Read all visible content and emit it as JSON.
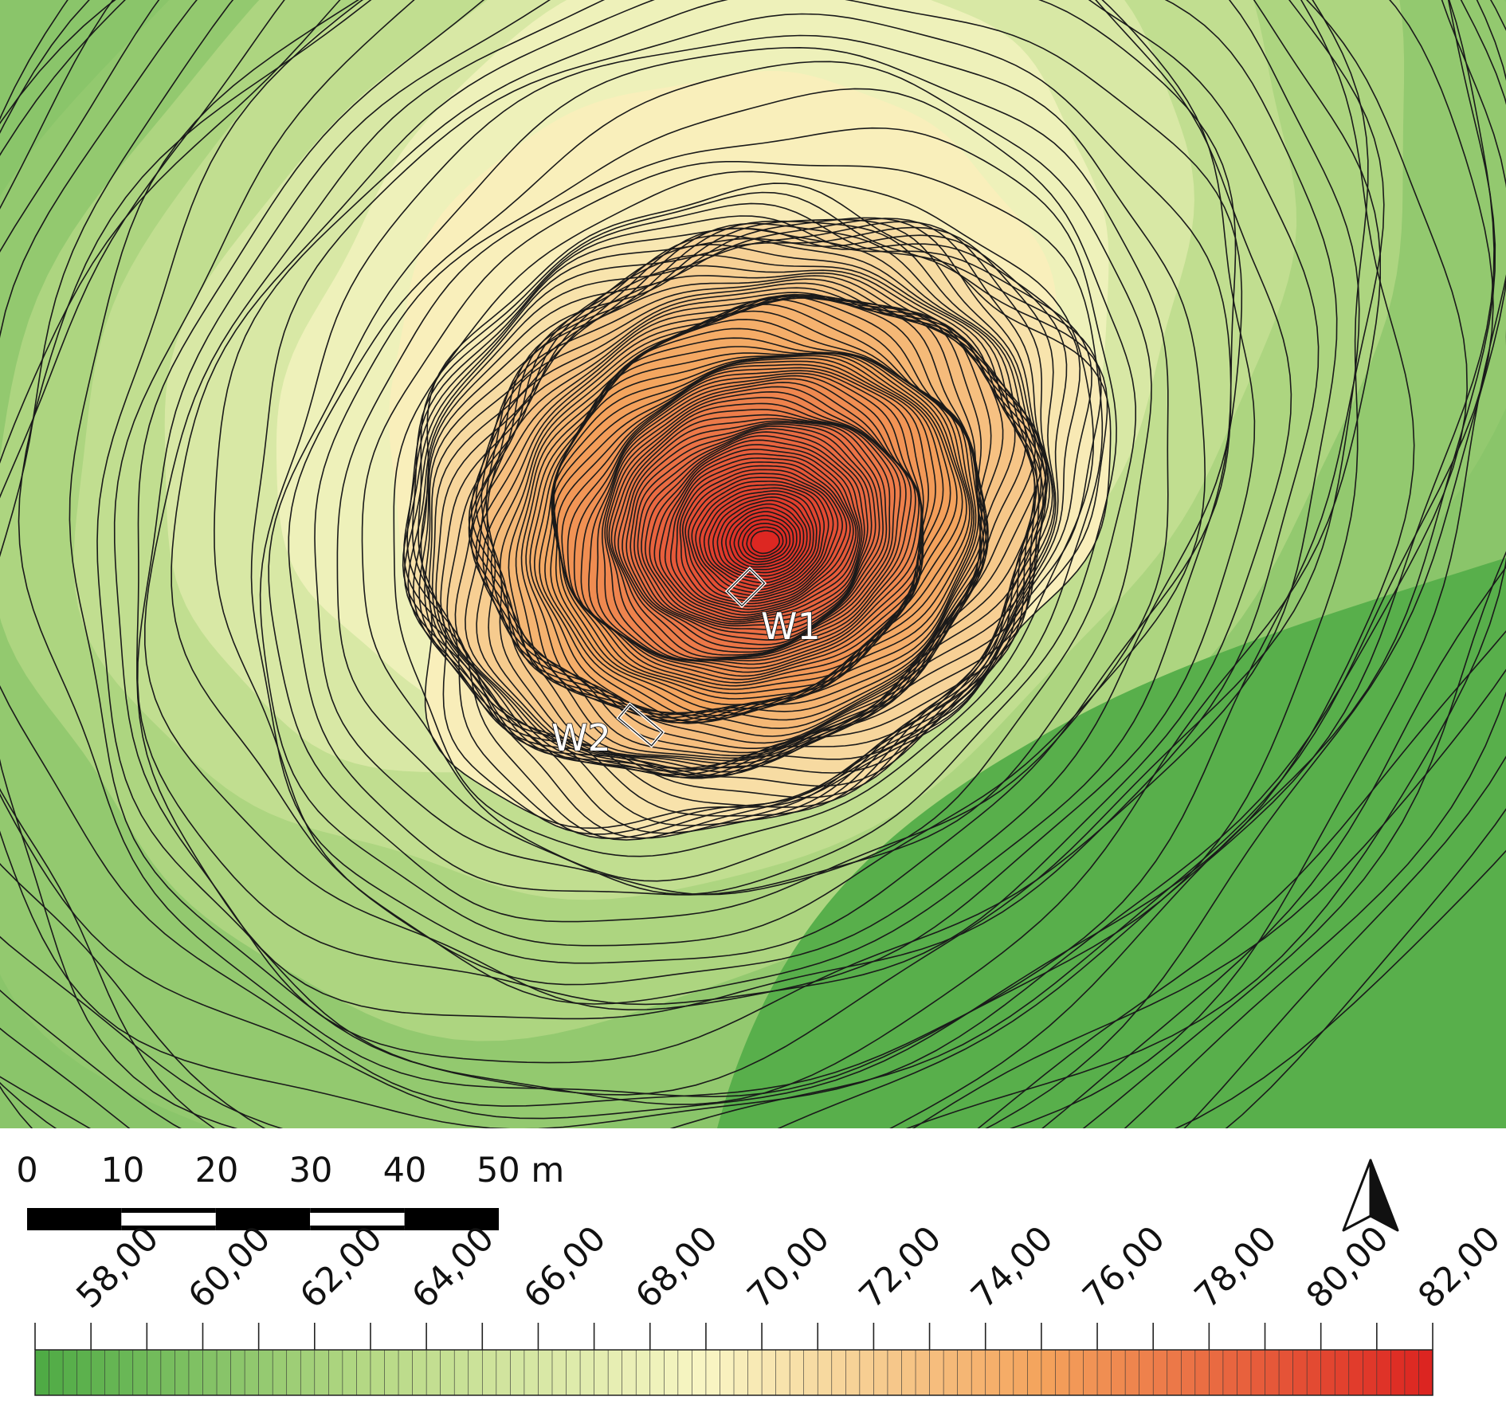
{
  "map": {
    "elevation_range": [
      57,
      82
    ],
    "contour_interval": 0.25,
    "colors": {
      "low": "#5bb44a",
      "mid_low": "#b8dc8a",
      "mid": "#f7f3c2",
      "mid_high": "#f6b06a",
      "high": "#d9261f",
      "contour": "#1a1a1a"
    },
    "sites": [
      {
        "label": "W1"
      },
      {
        "label": "W2"
      }
    ]
  },
  "scale_bar": {
    "labels": [
      "0",
      "10",
      "20",
      "30",
      "40",
      "50 m"
    ],
    "values": [
      0,
      10,
      20,
      30,
      40,
      50
    ]
  },
  "north_arrow": {
    "icon": "north-arrow-icon"
  },
  "color_legend": {
    "min": 57,
    "max": 82,
    "step": 0.25,
    "ticks": [
      "58,00",
      "60,00",
      "62,00",
      "64,00",
      "66,00",
      "68,00",
      "70,00",
      "72,00",
      "74,00",
      "76,00",
      "78,00",
      "80,00",
      "82,00"
    ],
    "tick_values": [
      58,
      60,
      62,
      64,
      66,
      68,
      70,
      72,
      74,
      76,
      78,
      80,
      82
    ],
    "colors": {
      "c57": "#4daa44",
      "c63": "#b6d985",
      "c69": "#f9f6c4",
      "c75": "#f4a35c",
      "c82": "#dc2320"
    }
  }
}
